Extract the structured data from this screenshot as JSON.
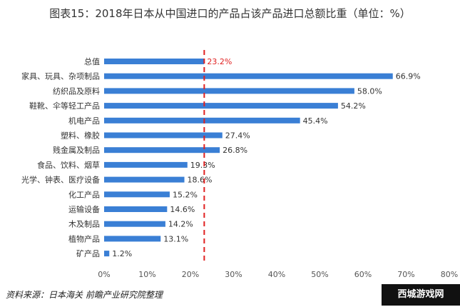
{
  "title": "图表15：2018年日本从中国进口的产品占该产品进口总额比重（单位：%）",
  "source": "资料来源：日本海关 前瞻产业研究院整理",
  "watermark": "西城游戏网",
  "chart_data": {
    "type": "bar",
    "orientation": "horizontal",
    "title": "图表15：2018年日本从中国进口的产品占该产品进口总额比重（单位：%）",
    "categories": [
      "总值",
      "家具、玩具、杂项制品",
      "纺织品及原料",
      "鞋靴、伞等轻工产品",
      "机电产品",
      "塑料、橡胶",
      "贱金属及制品",
      "食品、饮料、烟草",
      "光学、钟表、医疗设备",
      "化工产品",
      "运输设备",
      "木及制品",
      "植物产品",
      "矿产品"
    ],
    "values": [
      23.2,
      66.9,
      58.0,
      54.2,
      45.4,
      27.4,
      26.8,
      19.3,
      18.6,
      15.2,
      14.6,
      14.2,
      13.1,
      1.2
    ],
    "data_labels": [
      "23.2%",
      "66.9%",
      "58.0%",
      "54.2%",
      "45.4%",
      "27.4%",
      "26.8%",
      "19.3%",
      "18.6%",
      "15.2%",
      "14.6%",
      "14.2%",
      "13.1%",
      "1.2%"
    ],
    "xlim": [
      0,
      80
    ],
    "xticks": [
      "0%",
      "10%",
      "20%",
      "30%",
      "40%",
      "50%",
      "60%",
      "70%",
      "80%"
    ],
    "reference_line": {
      "value": 23.2,
      "style": "dashed",
      "color": "#e02020"
    },
    "bar_color": "#3a7fd5",
    "highlight_label_color": "#e02020",
    "grid": false
  }
}
